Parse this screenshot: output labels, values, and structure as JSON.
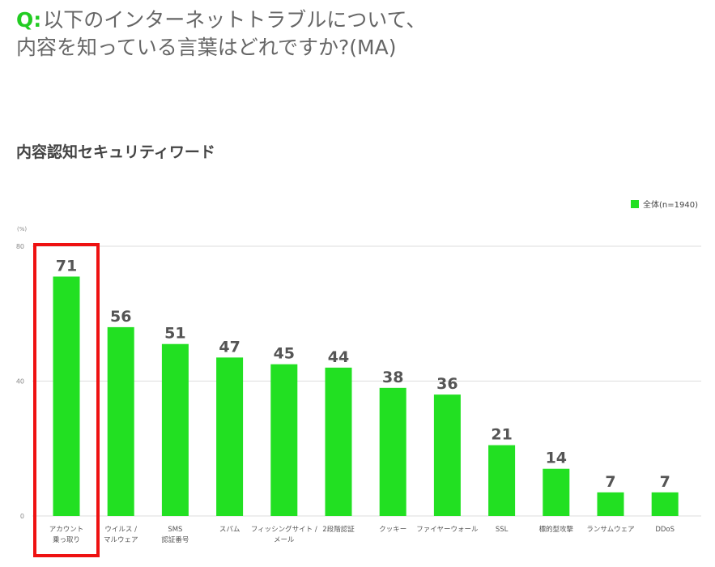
{
  "question": {
    "prefix": "Q:",
    "line1": "以下のインターネットトラブルについて、",
    "line2": "内容を知っている言葉はどれですか?(MA)"
  },
  "colors": {
    "bar": "#22e022",
    "highlight": "#ee1111",
    "grid": "#dddddd"
  },
  "chart_data": {
    "type": "bar",
    "title": "内容認知セキュリティワード",
    "unit": "(%)",
    "ylim": [
      0,
      80
    ],
    "yticks": [
      0,
      40,
      80
    ],
    "grid": true,
    "legend_position": "top-right",
    "highlighted_index": 0,
    "categories": [
      [
        "アカウント",
        "乗っ取り"
      ],
      [
        "ウイルス /",
        "マルウェア"
      ],
      [
        "SMS",
        "認証番号"
      ],
      [
        "スパム"
      ],
      [
        "フィッシングサイト /",
        "メール"
      ],
      [
        "2段階認証"
      ],
      [
        "クッキー"
      ],
      [
        "ファイヤーウォール"
      ],
      [
        "SSL"
      ],
      [
        "標的型攻撃"
      ],
      [
        "ランサムウェア"
      ],
      [
        "DDoS"
      ]
    ],
    "series": [
      {
        "name": "全体(n=1940)",
        "values": [
          71,
          56,
          51,
          47,
          45,
          44,
          38,
          36,
          21,
          14,
          7,
          7
        ]
      }
    ]
  }
}
